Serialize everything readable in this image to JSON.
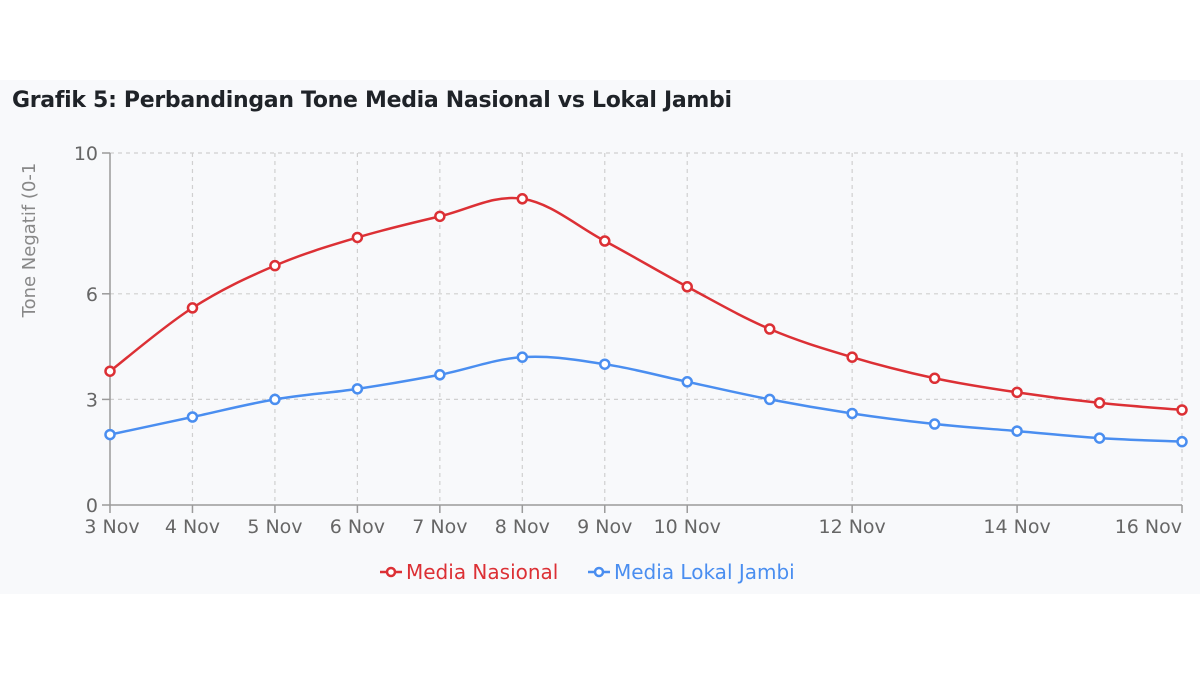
{
  "chart_data": {
    "type": "line",
    "title": "Grafik 5: Perbandingan Tone Media Nasional vs Lokal Jambi",
    "ylabel": "Tone Negatif (0-1",
    "xlabel": "",
    "x": [
      3,
      4,
      5,
      6,
      7,
      8,
      9,
      10,
      11,
      12,
      13,
      14,
      15,
      16
    ],
    "x_tick_values": [
      3,
      4,
      5,
      6,
      7,
      8,
      9,
      10,
      12,
      14,
      16
    ],
    "x_tick_labels": [
      "3 Nov",
      "4 Nov",
      "5 Nov",
      "6 Nov",
      "7 Nov",
      "8 Nov",
      "9 Nov",
      "10 Nov",
      "12 Nov",
      "14 Nov",
      "16 Nov"
    ],
    "y_tick_values": [
      0,
      3,
      6,
      10
    ],
    "y_tick_labels": [
      "0",
      "3",
      "6",
      "10"
    ],
    "ylim": [
      0,
      10
    ],
    "xlim": [
      3,
      16
    ],
    "grid": true,
    "legend_position": "bottom-center",
    "series": [
      {
        "name": "Media Nasional",
        "color": "#dc3035",
        "values": [
          3.8,
          5.6,
          6.8,
          7.6,
          8.2,
          8.7,
          7.5,
          6.2,
          5.0,
          4.2,
          3.6,
          3.2,
          2.9,
          2.7
        ]
      },
      {
        "name": "Media Lokal Jambi",
        "color": "#4a8ef0",
        "values": [
          2.0,
          2.5,
          3.0,
          3.3,
          3.7,
          4.2,
          4.0,
          3.5,
          3.0,
          2.6,
          2.3,
          2.1,
          1.9,
          1.8
        ]
      }
    ]
  }
}
